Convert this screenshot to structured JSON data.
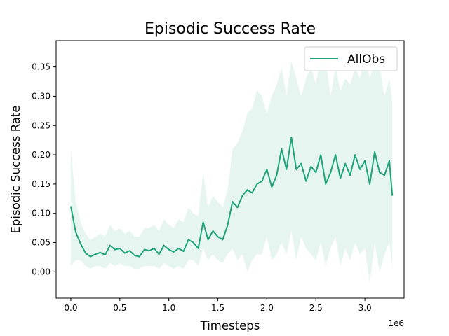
{
  "chart_data": {
    "type": "line",
    "title": "Episodic Success Rate",
    "xlabel": "Timesteps",
    "ylabel": "Episodic Success Rate",
    "x_multiplier_label": "1e6",
    "xlim": [
      -0.15,
      3.4
    ],
    "ylim": [
      -0.045,
      0.395
    ],
    "x_ticks": [
      {
        "value": 0.0,
        "label": "0.0"
      },
      {
        "value": 0.5,
        "label": "0.5"
      },
      {
        "value": 1.0,
        "label": "1.0"
      },
      {
        "value": 1.5,
        "label": "1.5"
      },
      {
        "value": 2.0,
        "label": "2.0"
      },
      {
        "value": 2.5,
        "label": "2.5"
      },
      {
        "value": 3.0,
        "label": "3.0"
      }
    ],
    "y_ticks": [
      {
        "value": 0.0,
        "label": "0.00"
      },
      {
        "value": 0.05,
        "label": "0.05"
      },
      {
        "value": 0.1,
        "label": "0.10"
      },
      {
        "value": 0.15,
        "label": "0.15"
      },
      {
        "value": 0.2,
        "label": "0.20"
      },
      {
        "value": 0.25,
        "label": "0.25"
      },
      {
        "value": 0.3,
        "label": "0.30"
      },
      {
        "value": 0.35,
        "label": "0.35"
      }
    ],
    "grid": false,
    "legend_position": "top-right",
    "series": [
      {
        "name": "AllObs",
        "color": "#1fa37a",
        "band_color": "#e6f5ef",
        "x": [
          0.0,
          0.05,
          0.1,
          0.15,
          0.2,
          0.25,
          0.3,
          0.35,
          0.4,
          0.45,
          0.5,
          0.55,
          0.6,
          0.65,
          0.7,
          0.75,
          0.8,
          0.85,
          0.9,
          0.95,
          1.0,
          1.05,
          1.1,
          1.15,
          1.2,
          1.25,
          1.3,
          1.35,
          1.4,
          1.45,
          1.5,
          1.55,
          1.6,
          1.65,
          1.7,
          1.75,
          1.8,
          1.85,
          1.9,
          1.95,
          2.0,
          2.05,
          2.1,
          2.15,
          2.2,
          2.25,
          2.3,
          2.35,
          2.4,
          2.45,
          2.5,
          2.55,
          2.6,
          2.65,
          2.7,
          2.75,
          2.8,
          2.85,
          2.9,
          2.95,
          3.0,
          3.05,
          3.1,
          3.15,
          3.2,
          3.25,
          3.28
        ],
        "y": [
          0.112,
          0.068,
          0.048,
          0.032,
          0.026,
          0.03,
          0.033,
          0.029,
          0.045,
          0.038,
          0.04,
          0.032,
          0.036,
          0.028,
          0.026,
          0.038,
          0.036,
          0.04,
          0.03,
          0.045,
          0.038,
          0.034,
          0.04,
          0.035,
          0.055,
          0.05,
          0.04,
          0.085,
          0.055,
          0.07,
          0.06,
          0.055,
          0.08,
          0.12,
          0.11,
          0.13,
          0.14,
          0.135,
          0.15,
          0.155,
          0.175,
          0.145,
          0.165,
          0.21,
          0.175,
          0.23,
          0.175,
          0.185,
          0.155,
          0.18,
          0.17,
          0.2,
          0.15,
          0.17,
          0.2,
          0.16,
          0.185,
          0.165,
          0.2,
          0.175,
          0.19,
          0.15,
          0.205,
          0.17,
          0.165,
          0.19,
          0.13
        ],
        "upper": [
          0.21,
          0.12,
          0.085,
          0.065,
          0.055,
          0.06,
          0.065,
          0.06,
          0.08,
          0.07,
          0.075,
          0.065,
          0.07,
          0.06,
          0.06,
          0.075,
          0.075,
          0.08,
          0.07,
          0.09,
          0.08,
          0.075,
          0.09,
          0.085,
          0.11,
          0.1,
          0.095,
          0.17,
          0.11,
          0.13,
          0.12,
          0.11,
          0.14,
          0.21,
          0.22,
          0.24,
          0.27,
          0.28,
          0.31,
          0.3,
          0.27,
          0.3,
          0.32,
          0.35,
          0.3,
          0.36,
          0.33,
          0.3,
          0.33,
          0.35,
          0.32,
          0.37,
          0.36,
          0.3,
          0.35,
          0.31,
          0.33,
          0.32,
          0.35,
          0.33,
          0.37,
          0.33,
          0.36,
          0.35,
          0.3,
          0.33,
          0.29
        ],
        "lower": [
          0.01,
          0.02,
          0.02,
          0.01,
          0.005,
          0.01,
          0.01,
          0.005,
          0.015,
          0.01,
          0.015,
          0.01,
          0.01,
          0.005,
          0.005,
          0.01,
          0.01,
          0.01,
          0.005,
          0.015,
          0.01,
          0.005,
          0.01,
          0.005,
          0.02,
          0.02,
          0.01,
          0.04,
          0.02,
          0.03,
          0.02,
          0.015,
          0.03,
          0.04,
          0.02,
          0.03,
          0.0,
          0.02,
          0.03,
          0.03,
          0.06,
          0.02,
          0.03,
          0.05,
          0.03,
          0.07,
          0.02,
          0.06,
          0.04,
          0.03,
          0.02,
          0.05,
          0.01,
          0.04,
          0.06,
          0.01,
          0.04,
          0.02,
          0.05,
          0.03,
          0.04,
          -0.02,
          0.05,
          0.0,
          0.03,
          0.05,
          0.01
        ]
      }
    ]
  }
}
